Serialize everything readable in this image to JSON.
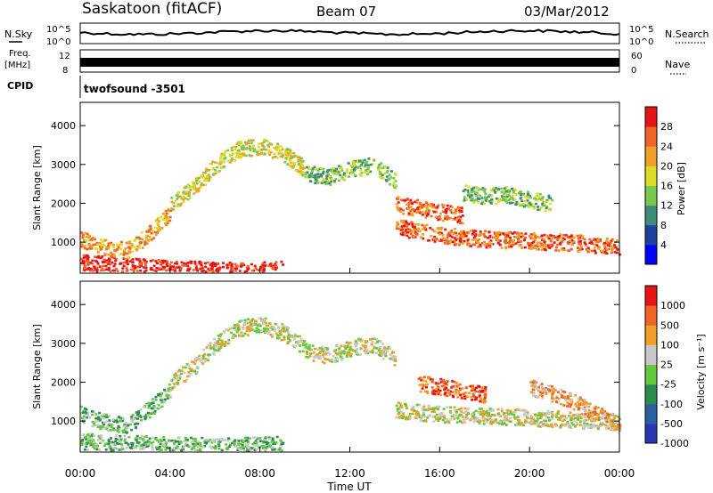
{
  "header": {
    "station": "Saskatoon (fitACF)",
    "beam": "Beam 07",
    "date": "03/Mar/2012"
  },
  "strips": {
    "nsky_label": "N.Sky",
    "nsky_ticks": [
      "10^5",
      "10^0"
    ],
    "nsearch_label": "N.Search",
    "nsearch_ticks": [
      "10^5",
      "10^0"
    ],
    "freq_label": "Freq.",
    "freq_unit": "[MHz]",
    "freq_ticks": [
      "12",
      "8"
    ],
    "nave_label": "Nave",
    "nave_ticks": [
      "60",
      "0"
    ],
    "cpid_label": "CPID",
    "cpid_value": "twofsound -3501"
  },
  "chart_data": [
    {
      "type": "heatmap",
      "name": "power-panel",
      "ylabel": "Slant Range [km]",
      "yticks": [
        "1000",
        "2000",
        "3000",
        "4000"
      ],
      "ylim": [
        200,
        4600
      ],
      "xlim": [
        0,
        24
      ],
      "colorbar_label": "Power [dB]",
      "colorbar_ticks": [
        "4",
        "8",
        "12",
        "16",
        "20",
        "24",
        "28"
      ],
      "colors": [
        "#0000ff",
        "#2040a0",
        "#3c8c78",
        "#78c850",
        "#dcdc28",
        "#f0a028",
        "#f06428",
        "#e61414"
      ],
      "features": [
        {
          "x": [
            0,
            2,
            4,
            6,
            8,
            9
          ],
          "y": [
            500,
            400,
            350,
            300,
            300,
            330
          ],
          "level": 7
        },
        {
          "x": [
            0,
            1,
            2,
            3,
            4
          ],
          "y": [
            1100,
            900,
            800,
            1200,
            1800
          ],
          "level": 5
        },
        {
          "x": [
            4,
            5,
            6,
            7,
            8,
            9,
            10
          ],
          "y": [
            2000,
            2400,
            3000,
            3400,
            3500,
            3300,
            2900
          ],
          "level": 4
        },
        {
          "x": [
            10,
            11,
            12,
            13,
            14
          ],
          "y": [
            2800,
            2700,
            2900,
            3000,
            2600
          ],
          "level": 3
        },
        {
          "x": [
            14,
            15,
            16,
            18,
            20,
            22,
            24
          ],
          "y": [
            1400,
            1300,
            1200,
            1100,
            1050,
            1000,
            900
          ],
          "level": 6
        },
        {
          "x": [
            14,
            15,
            16,
            17
          ],
          "y": [
            2000,
            1900,
            1800,
            1700
          ],
          "level": 6
        },
        {
          "x": [
            17,
            18,
            19,
            20,
            21
          ],
          "y": [
            2300,
            2200,
            2250,
            2100,
            2000
          ],
          "level": 3
        }
      ]
    },
    {
      "type": "heatmap",
      "name": "velocity-panel",
      "xlabel": "Time UT",
      "ylabel": "Slant Range [km]",
      "yticks": [
        "1000",
        "2000",
        "3000",
        "4000"
      ],
      "ylim": [
        200,
        4600
      ],
      "xlim": [
        0,
        24
      ],
      "xticks": [
        "00:00",
        "04:00",
        "08:00",
        "12:00",
        "16:00",
        "20:00",
        "00:00"
      ],
      "colorbar_label": "Velocity [m s⁻¹]",
      "colorbar_ticks": [
        "1000",
        "500",
        "100",
        "25",
        "-25",
        "-100",
        "-500",
        "-1000"
      ],
      "colors": [
        "#2838b4",
        "#2860a0",
        "#2c8c50",
        "#64c83c",
        "#c8c8c8",
        "#f0a028",
        "#f06428",
        "#e61414"
      ],
      "features": [
        {
          "x": [
            0,
            2,
            4,
            6,
            8,
            9
          ],
          "y": [
            500,
            450,
            400,
            380,
            400,
            420
          ],
          "level": 3
        },
        {
          "x": [
            0,
            1,
            2,
            3,
            4
          ],
          "y": [
            1200,
            1000,
            900,
            1300,
            1800
          ],
          "level": 3
        },
        {
          "x": [
            4,
            5,
            6,
            7,
            8,
            9,
            10
          ],
          "y": [
            2000,
            2400,
            3000,
            3400,
            3500,
            3300,
            2900
          ],
          "level": 4
        },
        {
          "x": [
            10,
            11,
            12,
            13,
            14
          ],
          "y": [
            2800,
            2700,
            2900,
            3000,
            2600
          ],
          "level": 4
        },
        {
          "x": [
            14,
            16,
            18,
            20,
            22,
            24
          ],
          "y": [
            1300,
            1200,
            1150,
            1100,
            1050,
            1000
          ],
          "level": 4
        },
        {
          "x": [
            15,
            16,
            17,
            18
          ],
          "y": [
            2000,
            1900,
            1800,
            1700
          ],
          "level": 6
        },
        {
          "x": [
            20,
            21,
            22,
            23,
            24
          ],
          "y": [
            1900,
            1700,
            1500,
            1200,
            900
          ],
          "level": 5
        }
      ]
    }
  ]
}
